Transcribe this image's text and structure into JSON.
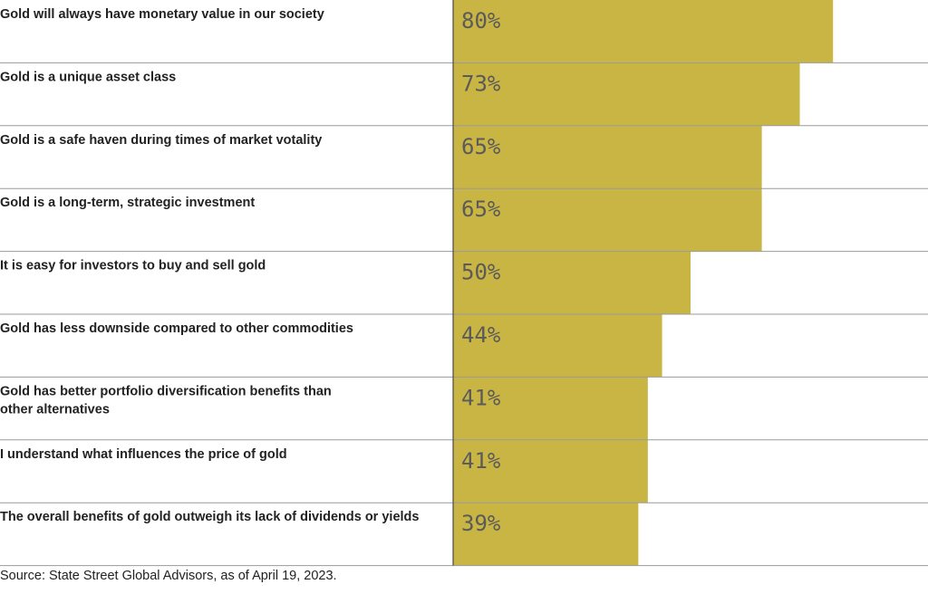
{
  "chart_data": {
    "type": "bar",
    "orientation": "horizontal",
    "categories": [
      [
        "Gold will always have monetary value in our society"
      ],
      [
        "Gold is a unique asset class"
      ],
      [
        "Gold is a safe haven during times of market votality"
      ],
      [
        "Gold is a long-term, strategic investment"
      ],
      [
        "It is easy for investors to buy and sell gold"
      ],
      [
        "Gold has less downside compared to other commodities"
      ],
      [
        "Gold has better portfolio diversification benefits than",
        "other alternatives"
      ],
      [
        "I understand what influences the price of gold"
      ],
      [
        "The overall benefits of gold outweigh its lack of dividends or yields"
      ]
    ],
    "values": [
      80,
      73,
      65,
      65,
      50,
      44,
      41,
      41,
      39
    ],
    "value_labels": [
      "80%",
      "73%",
      "65%",
      "65%",
      "50%",
      "44%",
      "41%",
      "41%",
      "39%"
    ],
    "xlim": [
      0,
      100
    ],
    "bar_color": "#c9b544",
    "grid": false,
    "legend": "none"
  },
  "source": "Source: State Street Global Advisors, as of April 19, 2023."
}
